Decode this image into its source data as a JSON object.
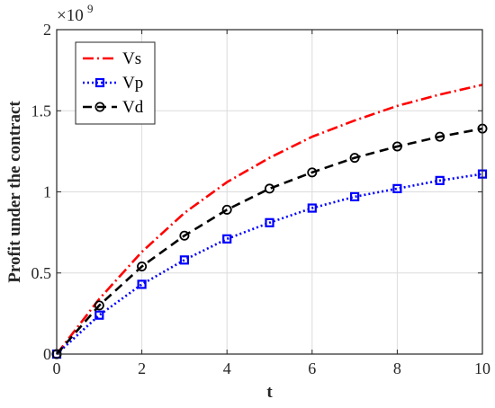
{
  "chart_data": {
    "type": "line",
    "xlabel": "t",
    "ylabel": "Profit under the contract",
    "xlim": [
      0,
      10
    ],
    "ylim": [
      0,
      2
    ],
    "xticks": [
      "0",
      "2",
      "4",
      "6",
      "8",
      "10"
    ],
    "yticks": [
      "0",
      "0.5",
      "1",
      "1.5",
      "2"
    ],
    "y_exponent": {
      "base": "×10",
      "power": "9"
    },
    "grid": true,
    "legend_position": "top-left",
    "x": [
      0,
      1,
      2,
      3,
      4,
      5,
      6,
      7,
      8,
      9,
      10
    ],
    "series": [
      {
        "name": "Vs",
        "color": "#ff0000",
        "line_style": "dash-dot",
        "marker": "none",
        "values": [
          0,
          0.34,
          0.63,
          0.87,
          1.06,
          1.21,
          1.34,
          1.44,
          1.53,
          1.6,
          1.66
        ]
      },
      {
        "name": "Vp",
        "color": "#0000ff",
        "line_style": "dotted",
        "marker": "square",
        "values": [
          0,
          0.24,
          0.43,
          0.58,
          0.71,
          0.81,
          0.9,
          0.97,
          1.02,
          1.07,
          1.11
        ]
      },
      {
        "name": "Vd",
        "color": "#000000",
        "line_style": "dashed",
        "marker": "circle",
        "values": [
          0,
          0.3,
          0.54,
          0.73,
          0.89,
          1.02,
          1.12,
          1.21,
          1.28,
          1.34,
          1.39
        ]
      }
    ]
  }
}
